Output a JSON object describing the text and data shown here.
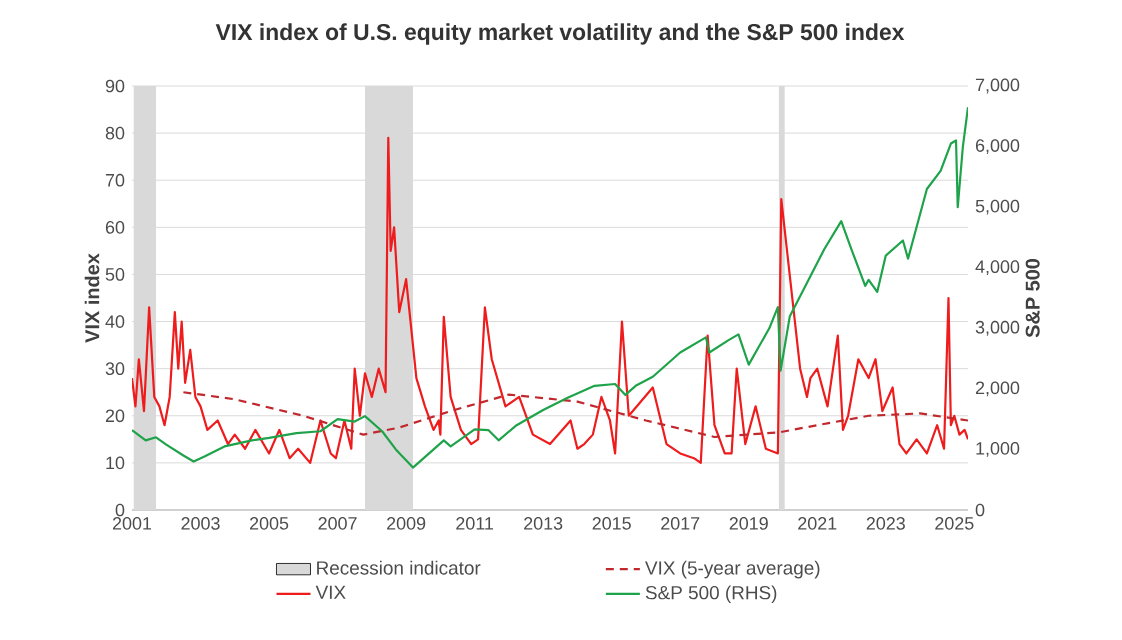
{
  "chart_data": {
    "type": "line",
    "title": "VIX index of U.S. equity market volatility and the S&P 500 index",
    "ylabel": "VIX index",
    "y2label": "S&P 500",
    "xlim": [
      2001,
      2025.4
    ],
    "xticks": [
      2001,
      2003,
      2005,
      2007,
      2009,
      2011,
      2013,
      2015,
      2017,
      2019,
      2021,
      2023,
      2025
    ],
    "ylim": [
      0,
      90
    ],
    "yticks": [
      0,
      10,
      20,
      30,
      40,
      50,
      60,
      70,
      80,
      90
    ],
    "y2lim": [
      0,
      7000
    ],
    "y2ticks": [
      {
        "value": 0,
        "label": "0"
      },
      {
        "value": 1000,
        "label": "1,000"
      },
      {
        "value": 2000,
        "label": "2,000"
      },
      {
        "value": 3000,
        "label": "3,000"
      },
      {
        "value": 4000,
        "label": "4,000"
      },
      {
        "value": 5000,
        "label": "5,000"
      },
      {
        "value": 6000,
        "label": "6,000"
      },
      {
        "value": 7000,
        "label": "7,000"
      }
    ],
    "grid": "y",
    "legend": "bottom",
    "bands": [
      {
        "axis": "x",
        "from": 2001.05,
        "to": 2001.7,
        "label": "Recession indicator",
        "color": "#d9d9d9"
      },
      {
        "axis": "x",
        "from": 2007.8,
        "to": 2009.2,
        "color": "#d9d9d9"
      },
      {
        "axis": "x",
        "from": 2019.88,
        "to": 2020.05,
        "color": "#d9d9d9"
      }
    ],
    "series": [
      {
        "name": "VIX",
        "color": "#ee1c1c",
        "line_style": "solid",
        "x": [
          2001.0,
          2001.1,
          2001.2,
          2001.35,
          2001.5,
          2001.65,
          2001.8,
          2001.95,
          2002.1,
          2002.25,
          2002.35,
          2002.45,
          2002.55,
          2002.7,
          2002.85,
          2003.0,
          2003.2,
          2003.5,
          2003.8,
          2004.0,
          2004.3,
          2004.6,
          2005.0,
          2005.3,
          2005.6,
          2005.85,
          2006.2,
          2006.5,
          2006.8,
          2006.95,
          2007.2,
          2007.4,
          2007.5,
          2007.65,
          2007.8,
          2008.0,
          2008.2,
          2008.4,
          2008.48,
          2008.55,
          2008.65,
          2008.8,
          2009.0,
          2009.3,
          2009.55,
          2009.8,
          2009.95,
          2010.0,
          2010.1,
          2010.3,
          2010.6,
          2010.9,
          2011.1,
          2011.3,
          2011.5,
          2011.9,
          2012.3,
          2012.7,
          2013.2,
          2013.8,
          2014.0,
          2014.2,
          2014.45,
          2014.7,
          2014.95,
          2015.1,
          2015.3,
          2015.5,
          2016.2,
          2016.6,
          2017.0,
          2017.4,
          2017.6,
          2017.8,
          2018.0,
          2018.3,
          2018.5,
          2018.65,
          2018.9,
          2019.2,
          2019.5,
          2019.85,
          2019.95,
          2020.5,
          2020.7,
          2020.8,
          2021.0,
          2021.3,
          2021.6,
          2021.75,
          2021.9,
          2022.2,
          2022.5,
          2022.7,
          2022.9,
          2023.2,
          2023.4,
          2023.6,
          2023.9,
          2024.2,
          2024.5,
          2024.7,
          2024.83,
          2024.9,
          2025.0,
          2025.15,
          2025.3,
          2025.4
        ],
        "values": [
          28,
          22,
          32,
          21,
          43,
          24,
          22,
          18,
          24,
          42,
          30,
          40,
          27,
          34,
          24,
          22,
          17,
          19,
          14,
          16,
          13,
          17,
          12,
          17,
          11,
          13,
          10,
          19,
          12,
          11,
          19,
          13,
          30,
          20,
          29,
          24,
          30,
          25,
          79,
          55,
          60,
          42,
          49,
          28,
          22,
          17,
          19,
          16,
          41,
          24,
          17,
          14,
          15,
          43,
          32,
          22,
          24,
          16,
          14,
          19,
          13,
          14,
          16,
          24,
          19,
          12,
          40,
          20,
          26,
          14,
          12,
          11,
          10,
          37,
          18,
          12,
          12,
          30,
          14,
          22,
          13,
          12,
          66,
          30,
          24,
          28,
          30,
          22,
          37,
          17,
          20,
          32,
          28,
          32,
          21,
          26,
          14,
          12,
          15,
          12,
          18,
          13,
          45,
          18,
          20,
          16,
          17,
          15
        ]
      },
      {
        "name": "VIX (5-year average)",
        "color": "#c0282d",
        "line_style": "dashed",
        "x": [
          2002.5,
          2004.0,
          2006.0,
          2007.75,
          2008.8,
          2010.3,
          2012.0,
          2014.0,
          2016.0,
          2018.0,
          2019.9,
          2021.0,
          2022.5,
          2024.0,
          2025.4
        ],
        "values": [
          25,
          23.5,
          20,
          16,
          17.5,
          21,
          24.5,
          23,
          19,
          15.5,
          16.5,
          18,
          20,
          20.5,
          19
        ]
      },
      {
        "name": "S&P 500 (RHS)",
        "color": "#1fa34a",
        "line_style": "solid",
        "axis": "y2",
        "x": [
          2001.0,
          2001.4,
          2001.7,
          2002.0,
          2002.5,
          2002.8,
          2003.1,
          2003.7,
          2004.5,
          2005.0,
          2005.8,
          2006.5,
          2007.0,
          2007.5,
          2007.8,
          2008.3,
          2008.7,
          2008.95,
          2009.2,
          2009.8,
          2010.1,
          2010.3,
          2011.0,
          2011.4,
          2011.7,
          2012.2,
          2013.0,
          2013.7,
          2014.5,
          2015.1,
          2015.4,
          2015.7,
          2016.2,
          2017.0,
          2017.75,
          2017.85,
          2018.4,
          2018.7,
          2019.0,
          2019.6,
          2019.85,
          2019.93,
          2020.2,
          2020.7,
          2021.2,
          2021.7,
          2022.0,
          2022.4,
          2022.5,
          2022.75,
          2023.0,
          2023.5,
          2023.65,
          2024.2,
          2024.6,
          2024.9,
          2025.05,
          2025.1,
          2025.25,
          2025.4
        ],
        "values": [
          1320,
          1150,
          1200,
          1080,
          900,
          800,
          880,
          1050,
          1150,
          1190,
          1270,
          1300,
          1500,
          1460,
          1550,
          1300,
          1000,
          850,
          700,
          1000,
          1150,
          1050,
          1330,
          1320,
          1150,
          1390,
          1650,
          1850,
          2050,
          2080,
          1900,
          2050,
          2200,
          2600,
          2850,
          2600,
          2800,
          2900,
          2400,
          3000,
          3350,
          2300,
          3200,
          3750,
          4300,
          4770,
          4300,
          3700,
          3800,
          3600,
          4200,
          4450,
          4150,
          5300,
          5600,
          6050,
          6100,
          5000,
          6000,
          6650
        ]
      }
    ]
  }
}
